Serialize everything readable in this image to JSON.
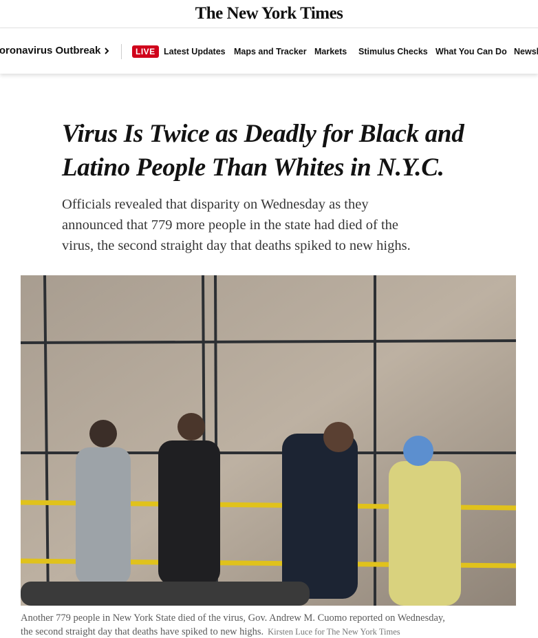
{
  "masthead": {
    "title": "The New York Times"
  },
  "nav": {
    "section": "Coronavirus Outbreak",
    "live": "LIVE",
    "links": [
      "Latest Updates",
      "Maps and Tracker",
      "Markets",
      "Stimulus Checks",
      "What You Can Do",
      "Newsletters"
    ]
  },
  "article": {
    "headline": [
      "Virus Is Twice as Deadly for Black and",
      "Latino People Than Whites in N.Y.C."
    ],
    "summary": [
      "Officials revealed that disparity on Wednesday as they",
      "announced that 779 more people in the state had died of the",
      "virus, the second straight day that deaths spiked to new highs."
    ],
    "caption": [
      "Another 779 people in New York State died of the virus, Gov. Andrew M. Cuomo reported on Wednesday,",
      "the second straight day that deaths have spiked to new highs."
    ],
    "credit": "Kirsten Luce for The New York Times"
  }
}
